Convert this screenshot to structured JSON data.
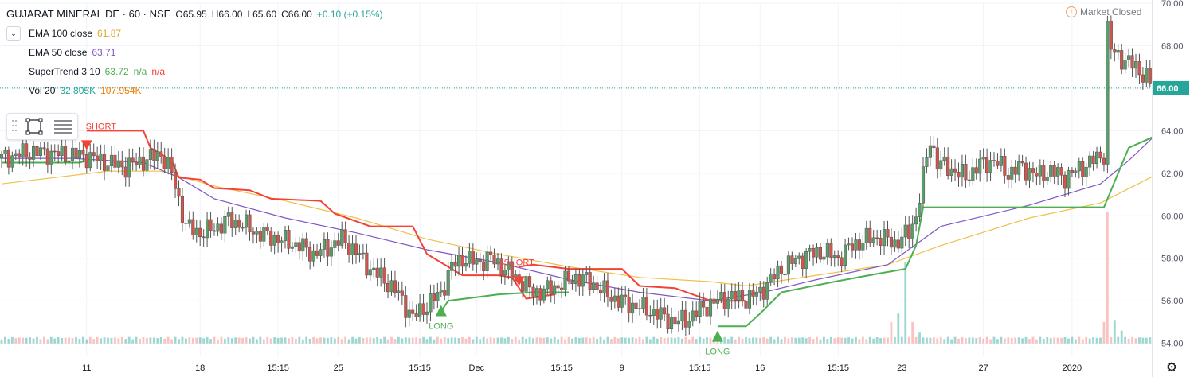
{
  "header": {
    "symbol_line": "GUJARAT MINERAL DE · 60 · NSE",
    "open": "O65.95",
    "high": "H66.00",
    "low": "L65.60",
    "close": "C66.00",
    "change": "+0.10 (+0.15%)",
    "status": "Market Closed"
  },
  "indicators": {
    "ema100": {
      "label": "EMA 100 close",
      "value": "61.87"
    },
    "ema50": {
      "label": "EMA 50 close",
      "value": "63.71"
    },
    "supertrend": {
      "label": "SuperTrend 3 10",
      "value": "63.72",
      "na1": "n/a",
      "na2": "n/a"
    },
    "volume": {
      "label": "Vol 20",
      "value": "32.805K",
      "ma": "107.954K"
    }
  },
  "toolbar": {
    "icons": [
      "select-rectangle-icon",
      "menu-lines-icon"
    ]
  },
  "colors": {
    "up": "#26a69a",
    "up_fill": "#5b9e6b",
    "down": "#d1554a",
    "ema100": "#f0c04a",
    "ema50": "#7e57c2",
    "st_up": "#4caf50",
    "st_down": "#f44336",
    "price_line": "#26a69a"
  },
  "chart_data": {
    "type": "candlestick",
    "symbol": "GUJARAT MINERAL DE",
    "interval": "60",
    "exchange": "NSE",
    "ylim": [
      53.8,
      70.0
    ],
    "y_ticks": [
      54.0,
      56.0,
      58.0,
      60.0,
      62.0,
      64.0,
      66.0,
      68.0,
      70.0
    ],
    "x_ticks": [
      "11",
      "18",
      "15:15",
      "25",
      "15:15",
      "Dec",
      "15:15",
      "9",
      "15:15",
      "16",
      "15:15",
      "23",
      "27",
      "2020"
    ],
    "last_price": 66.0,
    "last_price_label": "66.00",
    "close_path": [
      [
        0,
        62.7
      ],
      [
        8,
        63.0
      ],
      [
        16,
        62.9
      ],
      [
        24,
        62.8
      ],
      [
        30,
        62.5
      ],
      [
        35,
        62.3
      ],
      [
        40,
        62.6
      ],
      [
        45,
        62.9
      ],
      [
        48,
        62.0
      ],
      [
        52,
        59.5
      ],
      [
        56,
        59.2
      ],
      [
        60,
        59.4
      ],
      [
        64,
        59.8
      ],
      [
        68,
        59.6
      ],
      [
        72,
        59.2
      ],
      [
        76,
        59.0
      ],
      [
        80,
        58.8
      ],
      [
        84,
        58.6
      ],
      [
        88,
        58.2
      ],
      [
        92,
        58.5
      ],
      [
        96,
        58.9
      ],
      [
        100,
        58.3
      ],
      [
        104,
        57.5
      ],
      [
        108,
        57.0
      ],
      [
        112,
        56.3
      ],
      [
        116,
        55.2
      ],
      [
        120,
        55.8
      ],
      [
        124,
        56.4
      ],
      [
        127,
        57.6
      ],
      [
        130,
        58.0
      ],
      [
        134,
        57.8
      ],
      [
        138,
        58.0
      ],
      [
        142,
        57.5
      ],
      [
        146,
        57.0
      ],
      [
        150,
        56.4
      ],
      [
        154,
        56.5
      ],
      [
        158,
        56.8
      ],
      [
        162,
        57.1
      ],
      [
        166,
        56.9
      ],
      [
        170,
        56.4
      ],
      [
        174,
        56.0
      ],
      [
        178,
        55.8
      ],
      [
        182,
        55.6
      ],
      [
        186,
        55.3
      ],
      [
        190,
        55.0
      ],
      [
        194,
        55.2
      ],
      [
        198,
        55.7
      ],
      [
        202,
        56.0
      ],
      [
        206,
        56.2
      ],
      [
        210,
        56.1
      ],
      [
        214,
        56.4
      ],
      [
        217,
        57.0
      ],
      [
        220,
        57.5
      ],
      [
        224,
        57.9
      ],
      [
        228,
        58.2
      ],
      [
        232,
        58.3
      ],
      [
        236,
        58.0
      ],
      [
        240,
        58.6
      ],
      [
        244,
        58.9
      ],
      [
        248,
        59.0
      ],
      [
        252,
        58.7
      ],
      [
        256,
        59.2
      ],
      [
        258,
        60.0
      ],
      [
        260,
        61.8
      ],
      [
        262,
        63.6
      ],
      [
        264,
        62.5
      ],
      [
        268,
        62.2
      ],
      [
        272,
        61.8
      ],
      [
        276,
        62.4
      ],
      [
        280,
        62.6
      ],
      [
        284,
        62.0
      ],
      [
        288,
        62.3
      ],
      [
        292,
        61.9
      ],
      [
        296,
        62.1
      ],
      [
        300,
        61.8
      ],
      [
        304,
        62.2
      ],
      [
        308,
        62.6
      ],
      [
        311,
        62.9
      ],
      [
        312,
        68.8
      ],
      [
        313,
        67.8
      ],
      [
        316,
        67.4
      ],
      [
        320,
        67.0
      ],
      [
        323,
        66.5
      ],
      [
        325,
        66.0
      ]
    ],
    "ema50_path": [
      [
        0,
        62.7
      ],
      [
        20,
        62.7
      ],
      [
        40,
        62.5
      ],
      [
        50,
        61.8
      ],
      [
        60,
        60.8
      ],
      [
        80,
        59.9
      ],
      [
        100,
        59.2
      ],
      [
        120,
        58.4
      ],
      [
        140,
        57.8
      ],
      [
        160,
        57.0
      ],
      [
        180,
        56.4
      ],
      [
        200,
        56.0
      ],
      [
        215,
        56.4
      ],
      [
        230,
        57.0
      ],
      [
        250,
        57.7
      ],
      [
        265,
        59.5
      ],
      [
        290,
        60.5
      ],
      [
        310,
        61.5
      ],
      [
        318,
        62.6
      ],
      [
        325,
        63.71
      ]
    ],
    "ema100_path": [
      [
        0,
        61.5
      ],
      [
        30,
        62.1
      ],
      [
        45,
        62.1
      ],
      [
        60,
        61.4
      ],
      [
        80,
        60.7
      ],
      [
        100,
        59.9
      ],
      [
        120,
        58.9
      ],
      [
        140,
        58.2
      ],
      [
        160,
        57.6
      ],
      [
        180,
        57.1
      ],
      [
        200,
        56.9
      ],
      [
        210,
        56.7
      ],
      [
        230,
        57.2
      ],
      [
        250,
        57.7
      ],
      [
        265,
        58.6
      ],
      [
        290,
        59.9
      ],
      [
        310,
        60.6
      ],
      [
        325,
        61.87
      ]
    ],
    "supertrend_segments": [
      {
        "dir": "up",
        "points": [
          [
            0,
            62.5
          ],
          [
            22,
            62.5
          ],
          [
            24,
            62.6
          ]
        ]
      },
      {
        "dir": "down",
        "points": [
          [
            24,
            64.0
          ],
          [
            40,
            64.0
          ],
          [
            42,
            63.2
          ],
          [
            48,
            62.6
          ],
          [
            50,
            61.8
          ],
          [
            56,
            61.7
          ],
          [
            60,
            61.3
          ],
          [
            70,
            61.2
          ],
          [
            76,
            60.8
          ],
          [
            90,
            60.7
          ],
          [
            94,
            60.1
          ],
          [
            104,
            59.5
          ],
          [
            116,
            59.5
          ],
          [
            120,
            58.2
          ],
          [
            124,
            57.8
          ],
          [
            130,
            57.2
          ],
          [
            140,
            57.2
          ],
          [
            144,
            57.1
          ],
          [
            148,
            56.1
          ],
          [
            152,
            56.2
          ],
          [
            156,
            56.3
          ]
        ]
      },
      {
        "dir": "up",
        "points": [
          [
            124,
            55.5
          ],
          [
            126,
            56.0
          ],
          [
            140,
            56.3
          ],
          [
            150,
            56.4
          ],
          [
            160,
            56.4
          ]
        ]
      },
      {
        "dir": "down",
        "points": [
          [
            146,
            57.6
          ],
          [
            150,
            57.7
          ],
          [
            160,
            57.5
          ],
          [
            175,
            57.5
          ],
          [
            180,
            56.7
          ],
          [
            190,
            56.6
          ],
          [
            200,
            56.0
          ],
          [
            210,
            56.0
          ]
        ]
      },
      {
        "dir": "up",
        "points": [
          [
            202,
            54.8
          ],
          [
            210,
            54.8
          ],
          [
            214,
            55.4
          ],
          [
            220,
            56.4
          ],
          [
            235,
            56.9
          ],
          [
            248,
            57.3
          ],
          [
            255,
            57.5
          ],
          [
            258,
            58.6
          ],
          [
            260,
            60.4
          ],
          [
            285,
            60.4
          ],
          [
            300,
            60.4
          ],
          [
            311,
            60.4
          ],
          [
            318,
            63.2
          ],
          [
            325,
            63.72
          ]
        ]
      }
    ],
    "signals": [
      {
        "type": "short",
        "label": "SHORT",
        "x": 24,
        "y": 64.0
      },
      {
        "type": "long",
        "label": "LONG",
        "x": 124,
        "y": 55.8
      },
      {
        "type": "short",
        "label": "SHORT",
        "x": 146,
        "y": 57.6
      },
      {
        "type": "long",
        "label": "LONG",
        "x": 202,
        "y": 54.6
      }
    ],
    "volume": {
      "base": 54.0,
      "spikes": [
        [
          251,
          1.0
        ],
        [
          253,
          1.4
        ],
        [
          255,
          3.8
        ],
        [
          257,
          1.0
        ],
        [
          259,
          0.5
        ],
        [
          311,
          1.0
        ],
        [
          312,
          6.2
        ],
        [
          314,
          1.1
        ],
        [
          316,
          0.6
        ]
      ]
    }
  }
}
